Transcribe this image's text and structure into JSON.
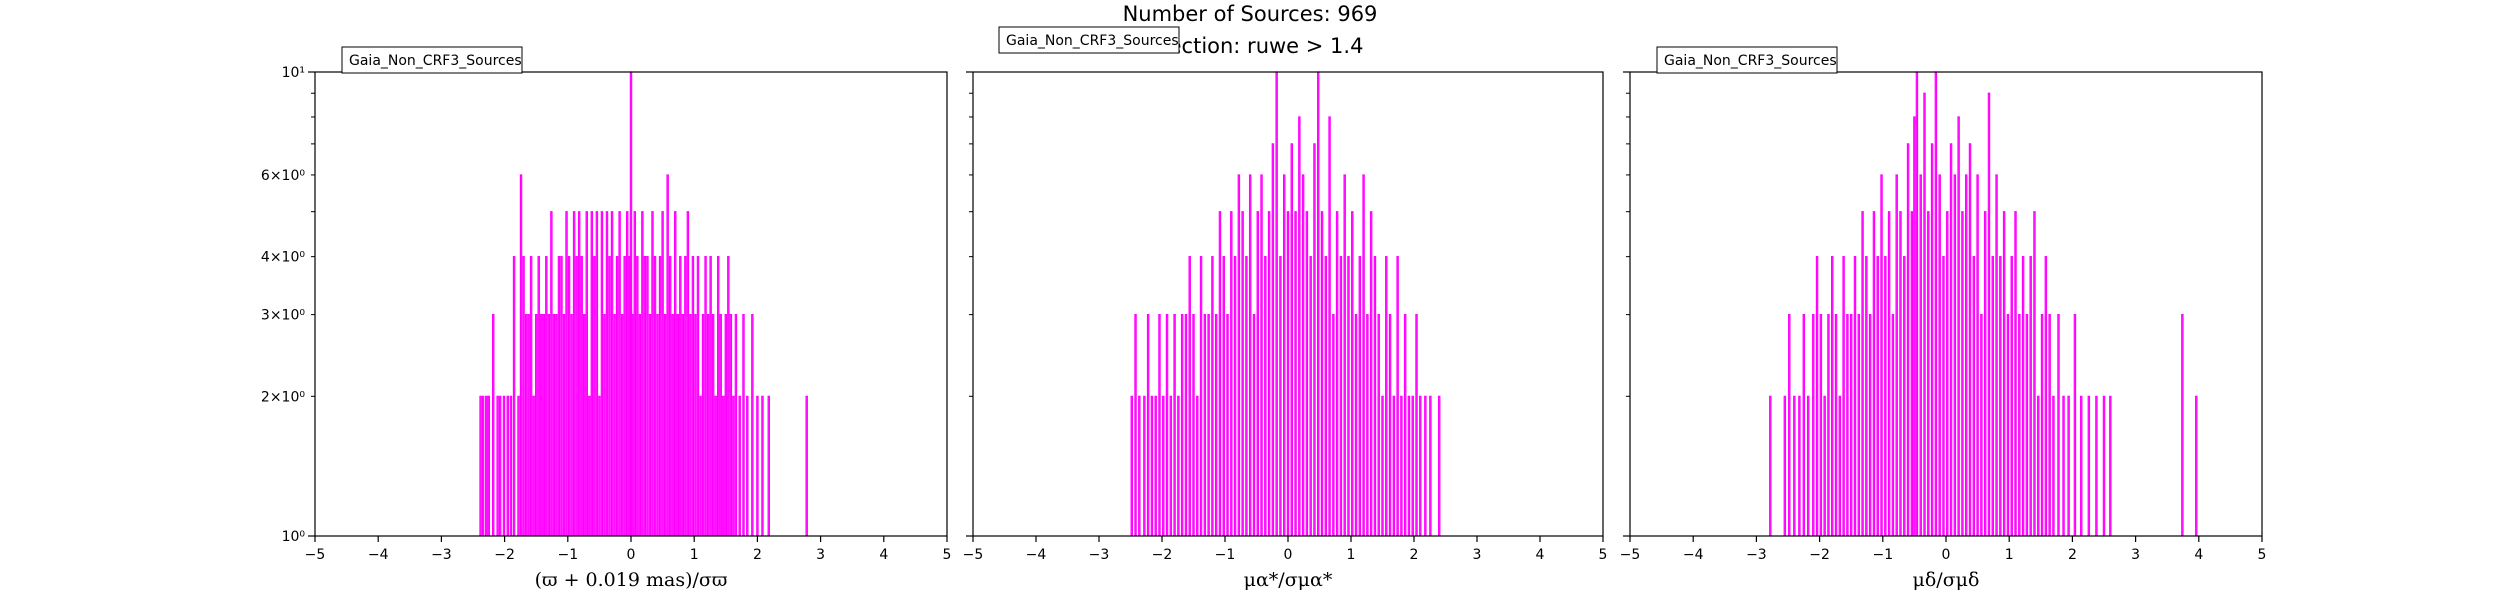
{
  "figure": {
    "title_line1": "Number of Sources: 969",
    "title_line2": "Selection: ruwe > 1.4"
  },
  "colors": {
    "bars": "#ff00ff",
    "axes": "#000000"
  },
  "chart_data": [
    {
      "type": "bar",
      "title": "",
      "legend": "Gaia_Non_CRF3_Sources",
      "legend_position": "top-left",
      "xlabel": "(ϖ + 0.019 mas)/σϖ",
      "ylabel": "",
      "xlim": [
        -5,
        5
      ],
      "ylim": [
        1,
        10
      ],
      "yscale": "log",
      "grid": false,
      "x_ticks": [
        "−5",
        "−4",
        "−3",
        "−2",
        "−1",
        "0",
        "1",
        "2",
        "3",
        "4",
        "5"
      ],
      "y_ticks": [
        "10¹",
        "6×10⁰",
        "4×10⁰",
        "3×10⁰",
        "2×10⁰",
        "10⁰"
      ],
      "y_tick_values": [
        10,
        6,
        4,
        3,
        2,
        1
      ],
      "bin_centers": [
        -2.38,
        -2.34,
        -2.29,
        -2.25,
        -2.18,
        -2.11,
        -2.07,
        -2.01,
        -1.95,
        -1.9,
        -1.85,
        -1.78,
        -1.74,
        -1.7,
        -1.66,
        -1.62,
        -1.58,
        -1.54,
        -1.5,
        -1.46,
        -1.42,
        -1.38,
        -1.34,
        -1.3,
        -1.26,
        -1.22,
        -1.18,
        -1.14,
        -1.1,
        -1.06,
        -1.02,
        -0.98,
        -0.94,
        -0.9,
        -0.86,
        -0.82,
        -0.78,
        -0.74,
        -0.7,
        -0.66,
        -0.62,
        -0.58,
        -0.54,
        -0.5,
        -0.46,
        -0.42,
        -0.38,
        -0.34,
        -0.3,
        -0.26,
        -0.22,
        -0.18,
        -0.14,
        -0.1,
        -0.06,
        -0.02,
        0.0,
        0.02,
        0.06,
        0.1,
        0.14,
        0.18,
        0.22,
        0.26,
        0.3,
        0.34,
        0.38,
        0.42,
        0.46,
        0.5,
        0.54,
        0.58,
        0.62,
        0.66,
        0.7,
        0.74,
        0.78,
        0.82,
        0.86,
        0.9,
        0.94,
        0.98,
        1.02,
        1.06,
        1.1,
        1.14,
        1.18,
        1.22,
        1.26,
        1.3,
        1.34,
        1.38,
        1.42,
        1.46,
        1.5,
        1.54,
        1.58,
        1.62,
        1.66,
        1.72,
        1.78,
        1.84,
        1.92,
        2.0,
        2.08,
        2.18,
        2.78
      ],
      "counts": [
        2,
        2,
        2,
        2,
        3,
        2,
        2,
        2,
        2,
        2,
        4,
        2,
        6,
        4,
        3,
        3,
        4,
        2,
        3,
        4,
        3,
        3,
        4,
        3,
        5,
        3,
        3,
        4,
        4,
        3,
        5,
        4,
        3,
        5,
        4,
        5,
        4,
        3,
        5,
        2,
        5,
        4,
        5,
        2,
        5,
        3,
        5,
        4,
        5,
        3,
        4,
        5,
        3,
        4,
        5,
        4,
        10,
        3,
        5,
        4,
        3,
        5,
        4,
        4,
        3,
        5,
        4,
        3,
        4,
        5,
        3,
        6,
        4,
        3,
        5,
        3,
        4,
        3,
        4,
        5,
        3,
        4,
        3,
        4,
        2,
        3,
        4,
        3,
        4,
        3,
        2,
        4,
        3,
        2,
        3,
        4,
        3,
        2,
        3,
        2,
        3,
        2,
        3,
        2,
        2,
        2,
        2
      ],
      "bar_width": 0.02
    },
    {
      "type": "bar",
      "title": "",
      "legend": "Gaia_Non_CRF3_Sources",
      "legend_position": "top-left",
      "xlabel": "μα*/σμα*",
      "ylabel": "",
      "xlim": [
        -5,
        5
      ],
      "ylim": [
        1,
        10
      ],
      "yscale": "log",
      "grid": false,
      "x_ticks": [
        "−5",
        "−4",
        "−3",
        "−2",
        "−1",
        "0",
        "1",
        "2",
        "3",
        "4",
        "5"
      ],
      "bin_centers": [
        -2.48,
        -2.42,
        -2.36,
        -2.28,
        -2.22,
        -2.16,
        -2.1,
        -2.04,
        -1.98,
        -1.92,
        -1.86,
        -1.8,
        -1.74,
        -1.68,
        -1.62,
        -1.56,
        -1.5,
        -1.44,
        -1.38,
        -1.32,
        -1.26,
        -1.2,
        -1.14,
        -1.08,
        -1.02,
        -0.96,
        -0.9,
        -0.84,
        -0.78,
        -0.72,
        -0.66,
        -0.6,
        -0.54,
        -0.48,
        -0.42,
        -0.36,
        -0.3,
        -0.24,
        -0.18,
        -0.12,
        -0.06,
        0.0,
        0.06,
        0.12,
        0.18,
        0.24,
        0.3,
        0.36,
        0.42,
        0.48,
        0.54,
        0.6,
        0.66,
        0.72,
        0.78,
        0.84,
        0.9,
        0.96,
        1.02,
        1.08,
        1.14,
        1.2,
        1.26,
        1.32,
        1.38,
        1.44,
        1.5,
        1.56,
        1.62,
        1.68,
        1.74,
        1.8,
        1.86,
        1.92,
        1.98,
        2.04,
        2.1,
        2.18,
        2.26,
        2.4
      ],
      "counts": [
        2,
        3,
        2,
        2,
        3,
        2,
        2,
        3,
        2,
        3,
        2,
        3,
        2,
        3,
        3,
        4,
        3,
        2,
        4,
        3,
        3,
        4,
        3,
        5,
        4,
        3,
        5,
        4,
        6,
        5,
        4,
        6,
        3,
        5,
        6,
        4,
        5,
        7,
        10,
        4,
        6,
        5,
        7,
        5,
        8,
        6,
        5,
        4,
        7,
        10,
        5,
        4,
        8,
        3,
        5,
        4,
        6,
        4,
        5,
        3,
        4,
        6,
        3,
        5,
        4,
        3,
        2,
        4,
        3,
        2,
        4,
        2,
        3,
        2,
        2,
        3,
        2,
        2,
        2,
        2
      ],
      "bar_width": 0.02
    },
    {
      "type": "bar",
      "title": "",
      "legend": "Gaia_Non_CRF3_Sources",
      "legend_position": "top-left",
      "xlabel": "μδ/σμδ",
      "ylabel": "",
      "xlim": [
        -5,
        5
      ],
      "ylim": [
        1,
        10
      ],
      "yscale": "log",
      "grid": false,
      "x_ticks": [
        "−5",
        "−4",
        "−3",
        "−2",
        "−1",
        "0",
        "1",
        "2",
        "3",
        "4",
        "5"
      ],
      "bin_centers": [
        -2.78,
        -2.55,
        -2.48,
        -2.4,
        -2.32,
        -2.25,
        -2.18,
        -2.1,
        -2.04,
        -1.98,
        -1.92,
        -1.86,
        -1.8,
        -1.74,
        -1.68,
        -1.62,
        -1.56,
        -1.5,
        -1.44,
        -1.38,
        -1.32,
        -1.26,
        -1.2,
        -1.14,
        -1.08,
        -1.02,
        -0.96,
        -0.9,
        -0.84,
        -0.78,
        -0.72,
        -0.66,
        -0.6,
        -0.54,
        -0.5,
        -0.46,
        -0.4,
        -0.34,
        -0.28,
        -0.22,
        -0.16,
        -0.1,
        -0.04,
        0.02,
        0.08,
        0.14,
        0.2,
        0.26,
        0.32,
        0.38,
        0.44,
        0.5,
        0.56,
        0.62,
        0.68,
        0.74,
        0.8,
        0.86,
        0.92,
        0.98,
        1.04,
        1.1,
        1.16,
        1.22,
        1.28,
        1.34,
        1.4,
        1.46,
        1.52,
        1.58,
        1.64,
        1.7,
        1.78,
        1.86,
        1.94,
        2.04,
        2.14,
        2.26,
        2.38,
        2.5,
        2.6,
        3.74,
        3.96
      ],
      "counts": [
        2,
        2,
        3,
        2,
        2,
        3,
        2,
        3,
        4,
        3,
        2,
        3,
        4,
        3,
        2,
        4,
        3,
        3,
        4,
        3,
        5,
        4,
        3,
        5,
        4,
        6,
        4,
        5,
        3,
        6,
        5,
        4,
        7,
        5,
        8,
        10,
        6,
        9,
        5,
        7,
        10,
        6,
        4,
        5,
        7,
        6,
        8,
        5,
        6,
        7,
        4,
        6,
        3,
        5,
        9,
        4,
        6,
        4,
        5,
        3,
        4,
        5,
        3,
        4,
        3,
        4,
        5,
        2,
        3,
        4,
        3,
        2,
        3,
        2,
        2,
        3,
        2,
        2,
        2,
        2,
        2,
        3,
        2
      ],
      "bar_width": 0.02
    }
  ]
}
